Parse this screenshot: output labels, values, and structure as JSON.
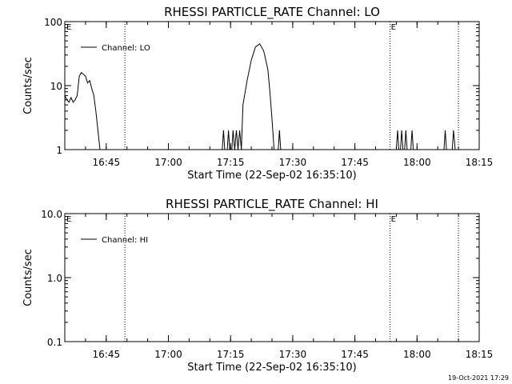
{
  "footer": {
    "timestamp": "19-Oct-2021 17:29"
  },
  "chart_data": [
    {
      "type": "line",
      "title": "RHESSI PARTICLE_RATE Channel: LO",
      "xlabel": "Start Time (22-Sep-02 16:35:10)",
      "ylabel": "Counts/sec",
      "y_scale": "log",
      "ylim": [
        1,
        100
      ],
      "xlim_minutes_after_1635": [
        0,
        100
      ],
      "x_ticks": [
        {
          "label": "16:45",
          "min": 10
        },
        {
          "label": "17:00",
          "min": 25
        },
        {
          "label": "17:15",
          "min": 40
        },
        {
          "label": "17:30",
          "min": 55
        },
        {
          "label": "17:45",
          "min": 70
        },
        {
          "label": "18:00",
          "min": 85
        },
        {
          "label": "18:15",
          "min": 100
        }
      ],
      "y_ticks": [
        {
          "label": "1",
          "v": 1
        },
        {
          "label": "10",
          "v": 10
        },
        {
          "label": "100",
          "v": 100
        }
      ],
      "legend": {
        "position": "top-left",
        "entry": "Channel: LO"
      },
      "markers": [
        {
          "label": "E",
          "min": 0
        },
        {
          "label": "",
          "min": 14.5
        },
        {
          "label": "E",
          "min": 78.5
        },
        {
          "label": "",
          "min": 95
        }
      ],
      "series": [
        {
          "name": "Channel: LO",
          "color": "#000000",
          "points": [
            [
              0,
              7
            ],
            [
              0.5,
              6
            ],
            [
              1,
              5.5
            ],
            [
              1.5,
              6.5
            ],
            [
              2,
              5.5
            ],
            [
              2.5,
              6
            ],
            [
              3,
              7
            ],
            [
              3.5,
              14
            ],
            [
              4,
              16
            ],
            [
              4.5,
              15
            ],
            [
              5,
              14
            ],
            [
              5.5,
              11
            ],
            [
              6,
              12
            ],
            [
              6.5,
              9
            ],
            [
              7,
              7
            ],
            [
              7.5,
              4
            ],
            [
              8,
              2
            ],
            [
              8.5,
              1
            ],
            [
              38,
              1
            ],
            [
              38.3,
              2
            ],
            [
              38.6,
              1
            ],
            [
              39.2,
              1
            ],
            [
              39.5,
              2
            ],
            [
              39.8,
              1
            ],
            [
              40.3,
              1
            ],
            [
              40.6,
              2
            ],
            [
              41,
              1
            ],
            [
              41.4,
              2
            ],
            [
              41.8,
              1
            ],
            [
              42.2,
              2
            ],
            [
              42.6,
              1
            ],
            [
              43,
              5
            ],
            [
              44,
              12
            ],
            [
              45,
              25
            ],
            [
              46,
              40
            ],
            [
              47,
              45
            ],
            [
              48,
              35
            ],
            [
              49,
              18
            ],
            [
              49.5,
              8
            ],
            [
              50,
              3
            ],
            [
              50.5,
              1
            ],
            [
              51.5,
              1
            ],
            [
              51.8,
              2
            ],
            [
              52.1,
              1
            ],
            [
              80,
              1
            ],
            [
              80.3,
              2
            ],
            [
              80.6,
              1
            ],
            [
              81,
              1
            ],
            [
              81.3,
              2
            ],
            [
              81.6,
              1
            ],
            [
              82,
              1
            ],
            [
              82.3,
              2
            ],
            [
              82.6,
              1
            ],
            [
              83.5,
              1
            ],
            [
              83.8,
              2
            ],
            [
              84.1,
              1
            ],
            [
              91.5,
              1
            ],
            [
              91.8,
              2
            ],
            [
              92.1,
              1
            ],
            [
              93.5,
              1
            ],
            [
              93.8,
              2
            ],
            [
              94.2,
              1
            ]
          ]
        }
      ]
    },
    {
      "type": "line",
      "title": "RHESSI PARTICLE_RATE Channel: HI",
      "xlabel": "Start Time (22-Sep-02 16:35:10)",
      "ylabel": "Counts/sec",
      "y_scale": "log",
      "ylim": [
        0.1,
        10
      ],
      "xlim_minutes_after_1635": [
        0,
        100
      ],
      "x_ticks": [
        {
          "label": "16:45",
          "min": 10
        },
        {
          "label": "17:00",
          "min": 25
        },
        {
          "label": "17:15",
          "min": 40
        },
        {
          "label": "17:30",
          "min": 55
        },
        {
          "label": "17:45",
          "min": 70
        },
        {
          "label": "18:00",
          "min": 85
        },
        {
          "label": "18:15",
          "min": 100
        }
      ],
      "y_ticks": [
        {
          "label": "0.1",
          "v": 0.1
        },
        {
          "label": "1.0",
          "v": 1
        },
        {
          "label": "10.0",
          "v": 10
        }
      ],
      "legend": {
        "position": "top-left",
        "entry": "Channel: HI"
      },
      "markers": [
        {
          "label": "E",
          "min": 0
        },
        {
          "label": "",
          "min": 14.5
        },
        {
          "label": "E",
          "min": 78.5
        },
        {
          "label": "",
          "min": 95
        }
      ],
      "series": [
        {
          "name": "Channel: HI",
          "color": "#000000",
          "points": []
        }
      ]
    }
  ]
}
